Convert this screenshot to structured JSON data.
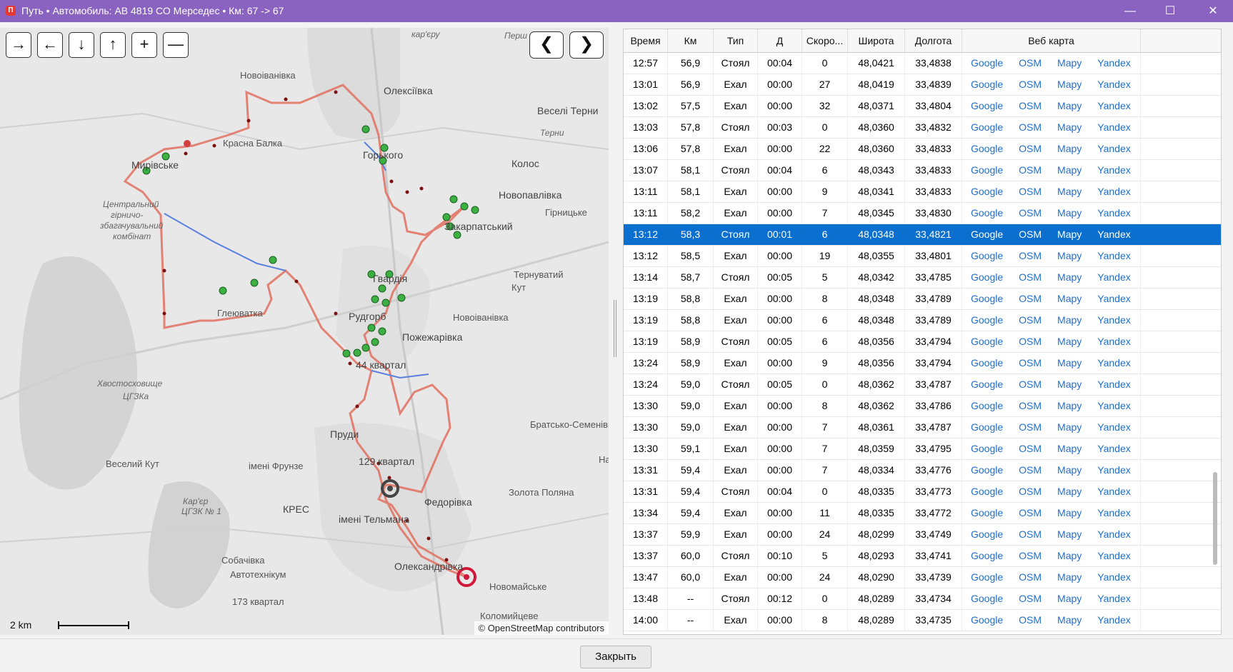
{
  "window": {
    "title": "Путь • Автомобиль: АВ 4819 СО Мерседес • Км: 67 -> 67",
    "app_icon": "П",
    "minimize": "—",
    "maximize": "☐",
    "close": "✕"
  },
  "map": {
    "nav_buttons": [
      "→",
      "←",
      "↓",
      "↑",
      "+",
      "—"
    ],
    "prev": "❮",
    "next": "❯",
    "places": [
      "кар'єру",
      "Перш",
      "Новоіванівка",
      "Олексіївка",
      "Веселі Терни",
      "Терни",
      "Красна Балка",
      "Мирівське",
      "Горького",
      "Колос",
      "Новопавлівка",
      "Гірницьке",
      "Центральний",
      "гірничо-",
      "збагачувальний",
      "комбінат",
      "Закарпатський",
      "Гвардія",
      "Тернуватий",
      "Кут",
      "Глеюватка",
      "Рудгорб",
      "Новоіванівка",
      "Пожежарівка",
      "44 квартал",
      "Хвостосховище",
      "ЦГЗКа",
      "Братсько-Семенівка",
      "Пруди",
      "Веселий Кут",
      "імені Фрунзе",
      "129 квартал",
      "Федорівка",
      "Золота Поляна",
      "Кар'єр",
      "ЦГЗК № 1",
      "КРЕС",
      "імені Тельмана",
      "Собачівка",
      "Автотехнікум",
      "Олександрівка",
      "Новомайське",
      "173 квартал",
      "Коломийцеве",
      "На"
    ],
    "scale": "2 km",
    "attribution": "© OpenStreetMap contributors"
  },
  "table": {
    "headers": [
      "Время",
      "Км",
      "Тип",
      "Д",
      "Скоро...",
      "Широта",
      "Долгота",
      "Веб карта"
    ],
    "link_labels": [
      "Google",
      "OSM",
      "Mapy",
      "Yandex"
    ],
    "selected_row": 8,
    "rows": [
      [
        "12:57",
        "56,9",
        "Стоял",
        "00:04",
        "0",
        "48,0421",
        "33,4838"
      ],
      [
        "13:01",
        "56,9",
        "Ехал",
        "00:00",
        "27",
        "48,0419",
        "33,4839"
      ],
      [
        "13:02",
        "57,5",
        "Ехал",
        "00:00",
        "32",
        "48,0371",
        "33,4804"
      ],
      [
        "13:03",
        "57,8",
        "Стоял",
        "00:03",
        "0",
        "48,0360",
        "33,4832"
      ],
      [
        "13:06",
        "57,8",
        "Ехал",
        "00:00",
        "22",
        "48,0360",
        "33,4833"
      ],
      [
        "13:07",
        "58,1",
        "Стоял",
        "00:04",
        "6",
        "48,0343",
        "33,4833"
      ],
      [
        "13:11",
        "58,1",
        "Ехал",
        "00:00",
        "9",
        "48,0341",
        "33,4833"
      ],
      [
        "13:11",
        "58,2",
        "Ехал",
        "00:00",
        "7",
        "48,0345",
        "33,4830"
      ],
      [
        "13:12",
        "58,3",
        "Стоял",
        "00:01",
        "6",
        "48,0348",
        "33,4821"
      ],
      [
        "13:12",
        "58,5",
        "Ехал",
        "00:00",
        "19",
        "48,0355",
        "33,4801"
      ],
      [
        "13:14",
        "58,7",
        "Стоял",
        "00:05",
        "5",
        "48,0342",
        "33,4785"
      ],
      [
        "13:19",
        "58,8",
        "Ехал",
        "00:00",
        "8",
        "48,0348",
        "33,4789"
      ],
      [
        "13:19",
        "58,8",
        "Ехал",
        "00:00",
        "6",
        "48,0348",
        "33,4789"
      ],
      [
        "13:19",
        "58,9",
        "Стоял",
        "00:05",
        "6",
        "48,0356",
        "33,4794"
      ],
      [
        "13:24",
        "58,9",
        "Ехал",
        "00:00",
        "9",
        "48,0356",
        "33,4794"
      ],
      [
        "13:24",
        "59,0",
        "Стоял",
        "00:05",
        "0",
        "48,0362",
        "33,4787"
      ],
      [
        "13:30",
        "59,0",
        "Ехал",
        "00:00",
        "8",
        "48,0362",
        "33,4786"
      ],
      [
        "13:30",
        "59,0",
        "Ехал",
        "00:00",
        "7",
        "48,0361",
        "33,4787"
      ],
      [
        "13:30",
        "59,1",
        "Ехал",
        "00:00",
        "7",
        "48,0359",
        "33,4795"
      ],
      [
        "13:31",
        "59,4",
        "Ехал",
        "00:00",
        "7",
        "48,0334",
        "33,4776"
      ],
      [
        "13:31",
        "59,4",
        "Стоял",
        "00:04",
        "0",
        "48,0335",
        "33,4773"
      ],
      [
        "13:34",
        "59,4",
        "Ехал",
        "00:00",
        "11",
        "48,0335",
        "33,4772"
      ],
      [
        "13:37",
        "59,9",
        "Ехал",
        "00:00",
        "24",
        "48,0299",
        "33,4749"
      ],
      [
        "13:37",
        "60,0",
        "Стоял",
        "00:10",
        "5",
        "48,0293",
        "33,4741"
      ],
      [
        "13:47",
        "60,0",
        "Ехал",
        "00:00",
        "24",
        "48,0290",
        "33,4739"
      ],
      [
        "13:48",
        "--",
        "Стоял",
        "00:12",
        "0",
        "48,0289",
        "33,4734"
      ],
      [
        "14:00",
        "--",
        "Ехал",
        "00:00",
        "8",
        "48,0289",
        "33,4735"
      ]
    ]
  },
  "footer": {
    "close_label": "Закрыть"
  }
}
